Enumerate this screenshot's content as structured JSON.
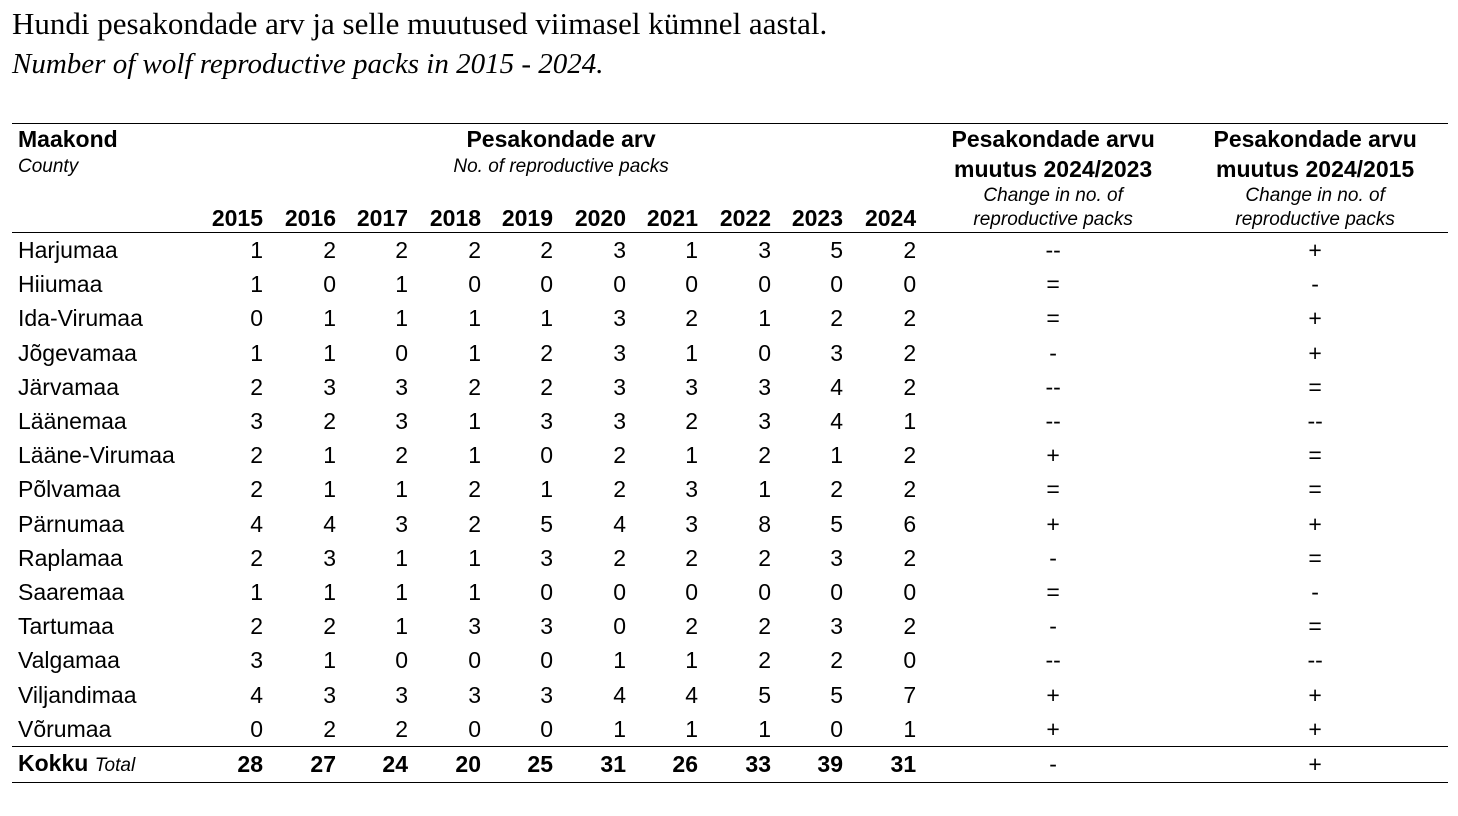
{
  "title": "Hundi pesakondade arv ja selle muutused viimasel kümnel aastal.",
  "subtitle": "Number of wolf reproductive packs in 2015 - 2024.",
  "header": {
    "county_et": "Maakond",
    "county_en": "County",
    "packs_et": "Pesakondade arv",
    "packs_en": "No. of reproductive packs",
    "change1_et_line1": "Pesakondade arvu",
    "change1_et_line2": "muutus 2024/2023",
    "change1_en_line1": "Change in no. of",
    "change1_en_line2": "reproductive packs",
    "change2_et_line1": "Pesakondade arvu",
    "change2_et_line2": "muutus 2024/2015",
    "change2_en_line1": "Change in no. of",
    "change2_en_line2": "reproductive packs"
  },
  "years": [
    "2015",
    "2016",
    "2017",
    "2018",
    "2019",
    "2020",
    "2021",
    "2022",
    "2023",
    "2024"
  ],
  "rows": [
    {
      "county": "Harjumaa",
      "values": [
        1,
        2,
        2,
        2,
        2,
        3,
        1,
        3,
        5,
        2
      ],
      "c1": "--",
      "c2": "+"
    },
    {
      "county": "Hiiumaa",
      "values": [
        1,
        0,
        1,
        0,
        0,
        0,
        0,
        0,
        0,
        0
      ],
      "c1": "=",
      "c2": "-"
    },
    {
      "county": "Ida-Virumaa",
      "values": [
        0,
        1,
        1,
        1,
        1,
        3,
        2,
        1,
        2,
        2
      ],
      "c1": "=",
      "c2": "+"
    },
    {
      "county": "Jõgevamaa",
      "values": [
        1,
        1,
        0,
        1,
        2,
        3,
        1,
        0,
        3,
        2
      ],
      "c1": "-",
      "c2": "+"
    },
    {
      "county": "Järvamaa",
      "values": [
        2,
        3,
        3,
        2,
        2,
        3,
        3,
        3,
        4,
        2
      ],
      "c1": "--",
      "c2": "="
    },
    {
      "county": "Läänemaa",
      "values": [
        3,
        2,
        3,
        1,
        3,
        3,
        2,
        3,
        4,
        1
      ],
      "c1": "--",
      "c2": "--"
    },
    {
      "county": "Lääne-Virumaa",
      "values": [
        2,
        1,
        2,
        1,
        0,
        2,
        1,
        2,
        1,
        2
      ],
      "c1": "+",
      "c2": "="
    },
    {
      "county": "Põlvamaa",
      "values": [
        2,
        1,
        1,
        2,
        1,
        2,
        3,
        1,
        2,
        2
      ],
      "c1": "=",
      "c2": "="
    },
    {
      "county": "Pärnumaa",
      "values": [
        4,
        4,
        3,
        2,
        5,
        4,
        3,
        8,
        5,
        6
      ],
      "c1": "+",
      "c2": "+"
    },
    {
      "county": "Raplamaa",
      "values": [
        2,
        3,
        1,
        1,
        3,
        2,
        2,
        2,
        3,
        2
      ],
      "c1": "-",
      "c2": "="
    },
    {
      "county": "Saaremaa",
      "values": [
        1,
        1,
        1,
        1,
        0,
        0,
        0,
        0,
        0,
        0
      ],
      "c1": "=",
      "c2": "-"
    },
    {
      "county": "Tartumaa",
      "values": [
        2,
        2,
        1,
        3,
        3,
        0,
        2,
        2,
        3,
        2
      ],
      "c1": "-",
      "c2": "="
    },
    {
      "county": "Valgamaa",
      "values": [
        3,
        1,
        0,
        0,
        0,
        1,
        1,
        2,
        2,
        0
      ],
      "c1": "--",
      "c2": "--"
    },
    {
      "county": "Viljandimaa",
      "values": [
        4,
        3,
        3,
        3,
        3,
        4,
        4,
        5,
        5,
        7
      ],
      "c1": "+",
      "c2": "+"
    },
    {
      "county": "Võrumaa",
      "values": [
        0,
        2,
        2,
        0,
        0,
        1,
        1,
        1,
        0,
        1
      ],
      "c1": "+",
      "c2": "+"
    }
  ],
  "total": {
    "label_et": "Kokku",
    "label_en": "Total",
    "values": [
      28,
      27,
      24,
      20,
      25,
      31,
      26,
      33,
      39,
      31
    ],
    "c1": "-",
    "c2": "+"
  }
}
